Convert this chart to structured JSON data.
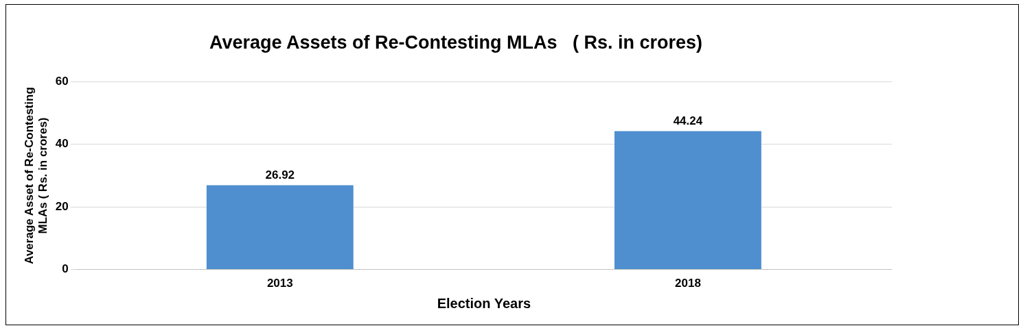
{
  "chart_data": {
    "type": "bar",
    "title": "Average Assets of Re-Contesting MLAs   ( Rs. in crores)",
    "xlabel": "Election Years",
    "ylabel": "Average Asset of Re-Contesting MLAs ( Rs. in crores)",
    "categories": [
      "2013",
      "2018"
    ],
    "values": [
      26.92,
      44.24
    ],
    "color": "#4f8fd0",
    "ylim": [
      0,
      60
    ],
    "yticks": [
      0,
      20,
      40,
      60
    ],
    "grid": "y",
    "data_labels": true,
    "legend": false
  }
}
